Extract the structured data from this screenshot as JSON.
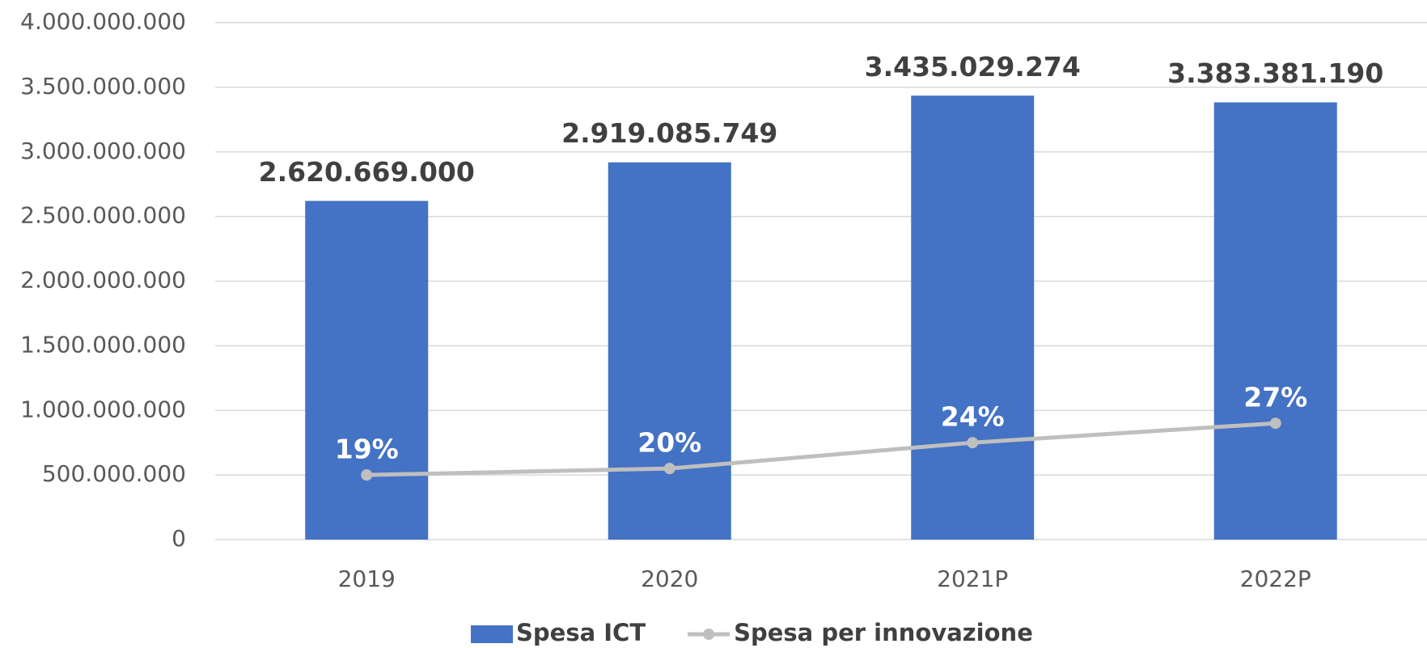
{
  "chart_data": {
    "type": "bar_line",
    "categories": [
      "2019",
      "2020",
      "2021P",
      "2022P"
    ],
    "series": [
      {
        "name": "Spesa ICT",
        "type": "bar",
        "color": "#4472c4",
        "values": [
          2620669000,
          2919085749,
          3435029274,
          3383381190
        ],
        "value_labels": [
          "2.620.669.000",
          "2.919.085.749",
          "3.435.029.274",
          "3.383.381.190"
        ]
      },
      {
        "name": "Spesa per innovazione",
        "type": "line",
        "axis": "y2",
        "color": "#bfbfbf",
        "values": [
          19,
          20,
          24,
          27
        ],
        "value_labels": [
          "19%",
          "20%",
          "24%",
          "27%"
        ]
      }
    ],
    "ylim": [
      0,
      4000000000
    ],
    "yticks": [
      0,
      {
        "value": 500000000,
        "label": "500.000.000"
      },
      {
        "value": 1000000000,
        "label": "1.000.000.000"
      },
      {
        "value": 1500000000,
        "label": "1.500.000.000"
      },
      {
        "value": 2000000000,
        "label": "2.000.000.000"
      },
      {
        "value": 2500000000,
        "label": "2.500.000.000"
      },
      {
        "value": 3000000000,
        "label": "3.000.000.000"
      },
      {
        "value": 3500000000,
        "label": "3.500.000.000"
      },
      {
        "value": 4000000000,
        "label": "4.000.000.000"
      }
    ],
    "y2lim": [
      9,
      89
    ],
    "grid": true,
    "legend": "bottom"
  }
}
